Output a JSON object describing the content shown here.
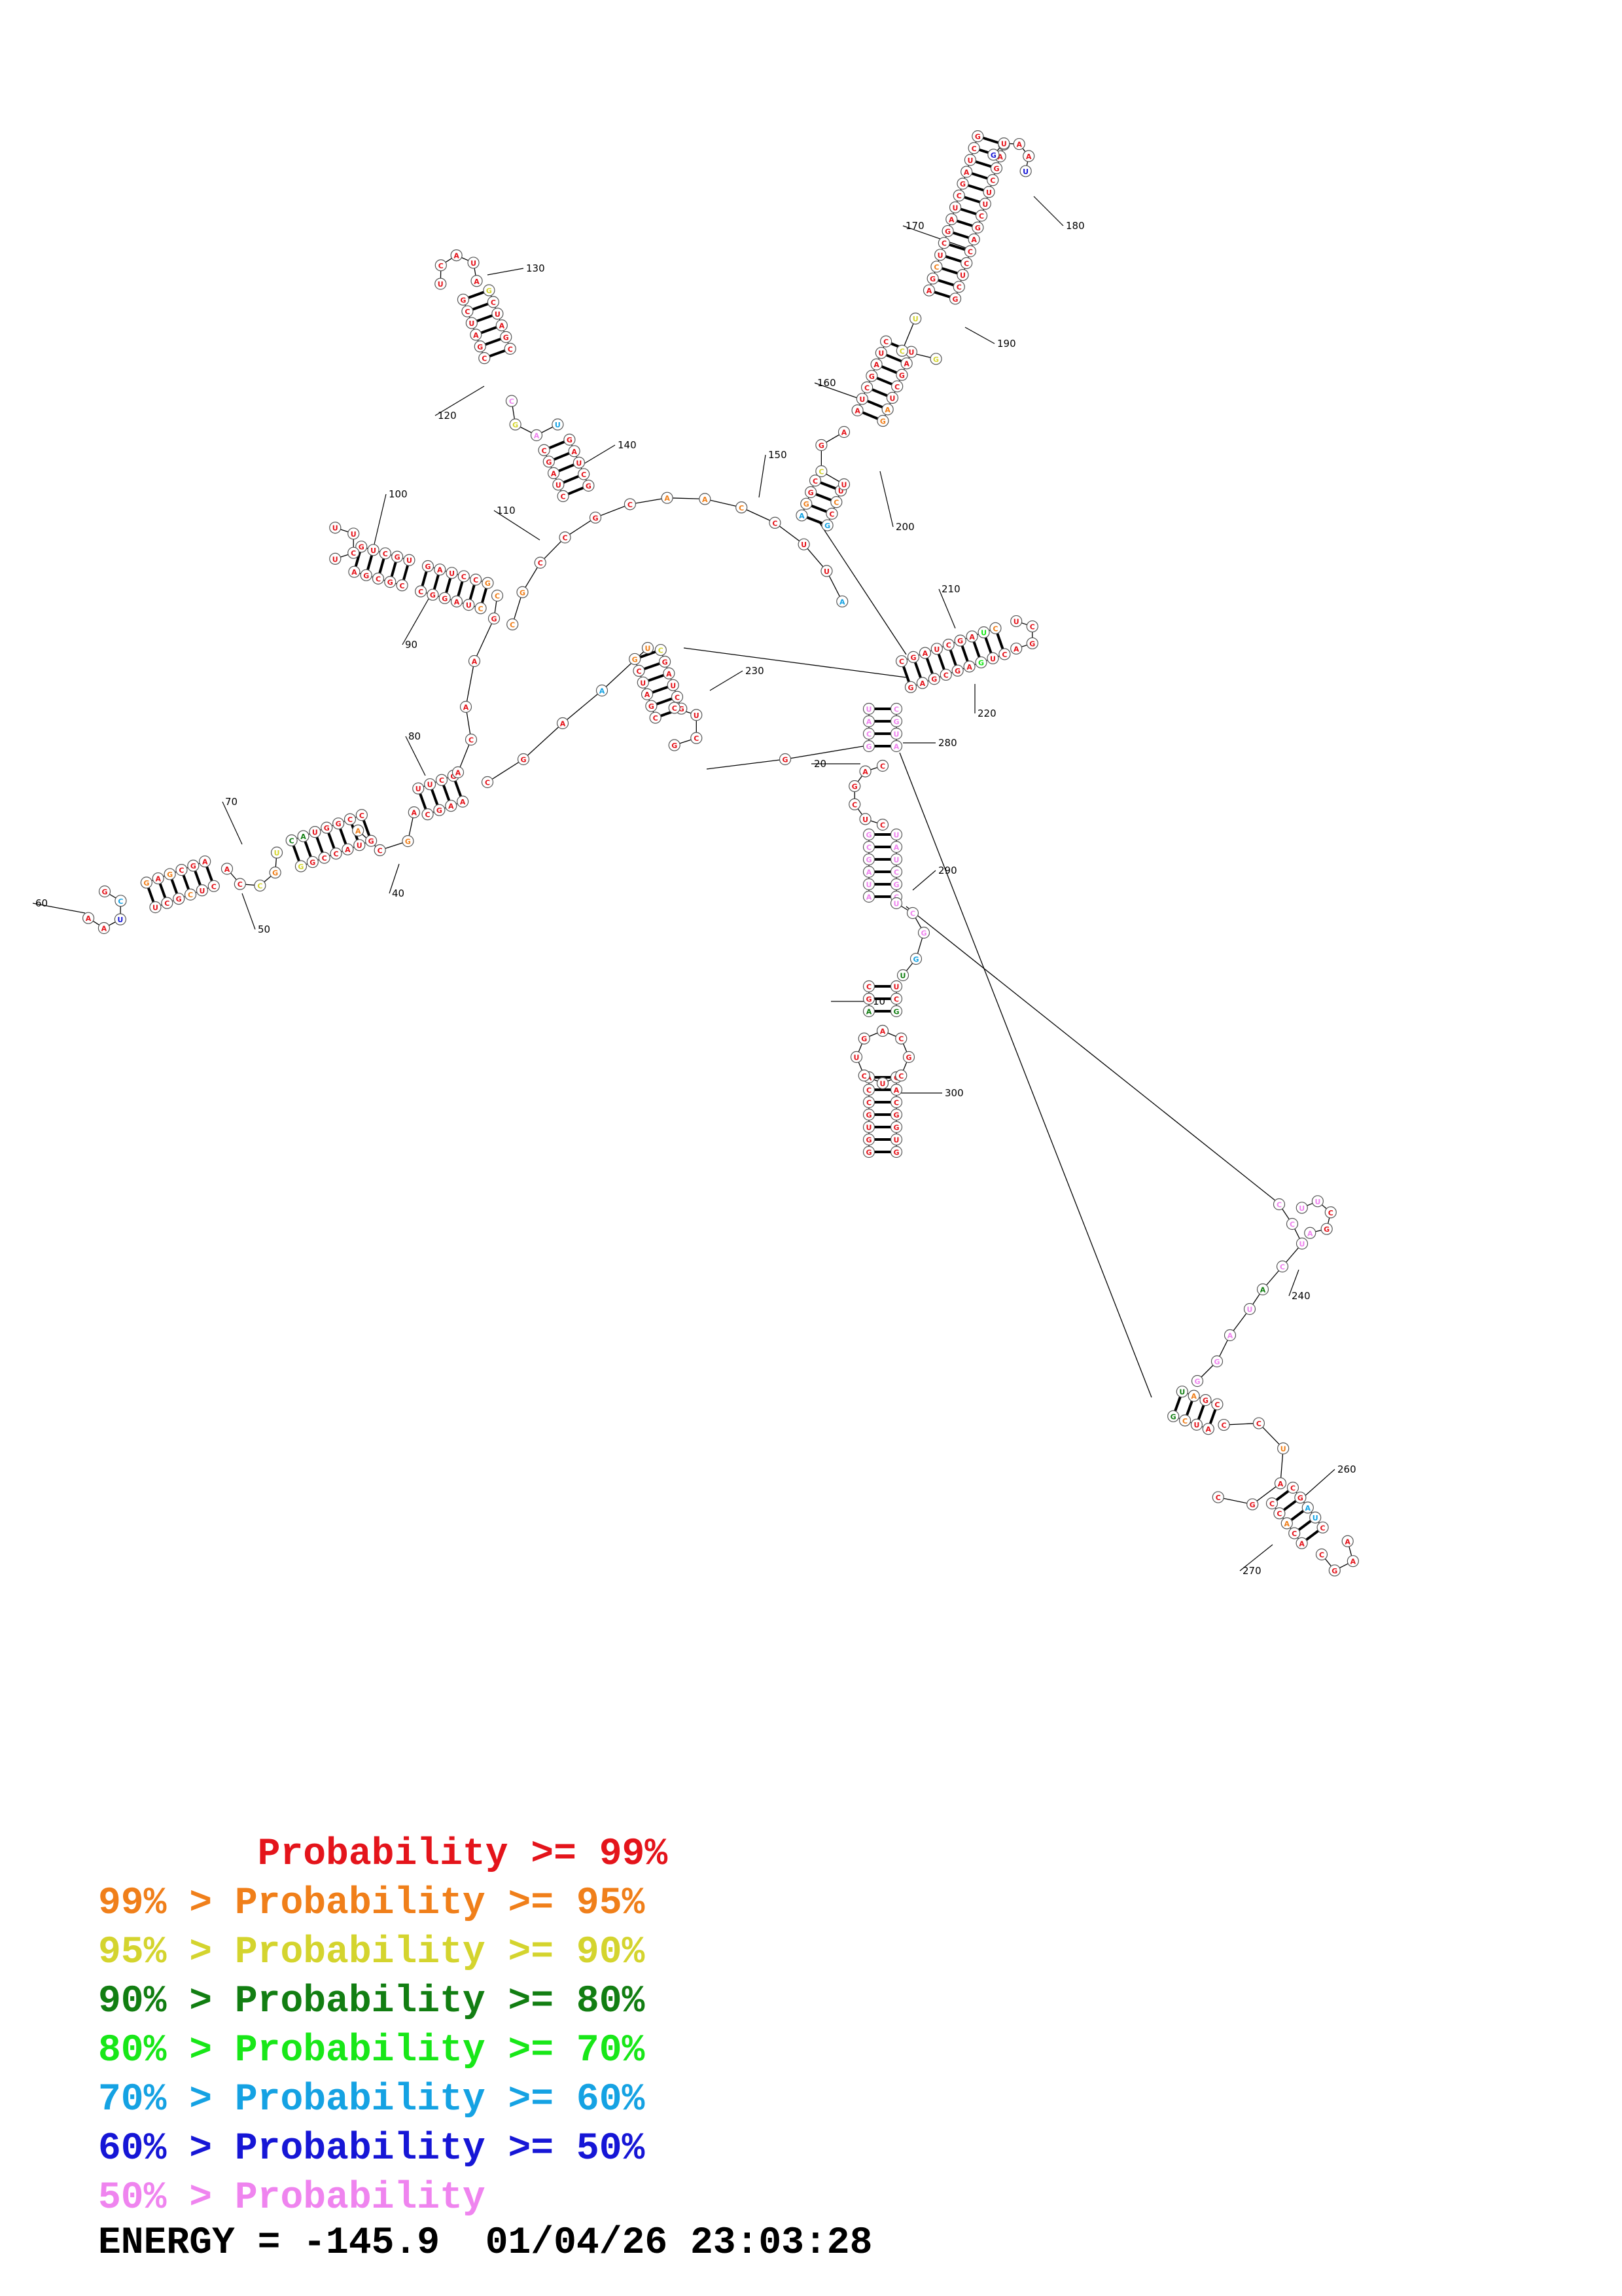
{
  "diagram": {
    "position_labels": [
      "10",
      "20",
      "40",
      "50",
      "60",
      "70",
      "80",
      "90",
      "100",
      "110",
      "120",
      "130",
      "140",
      "150",
      "160",
      "170",
      "180",
      "190",
      "200",
      "210",
      "220",
      "230",
      "240",
      "260",
      "270",
      "280",
      "290",
      "300"
    ],
    "bases": {
      "stem_5p_1": "GUGGCACCU",
      "stem_3p_1": "GGUGCCAC",
      "hairpin_300": "AGUCAGAGGU",
      "hairpin_60": "ACGUGGAGCGGUAAGAGUUCGAAAUGG",
      "hairpin_100": "UGCUGGGAAUCCCAGCG",
      "hairpin_130": "ACUGCCAUGGCAGUAGGCGC",
      "hairpin_180": "GCUCCAGCUUCGAGCUGGUGGAUCGGAUU",
      "hairpin_210": "GAGCGAGUCUCGCUAUCG",
      "hairpin_230": "CGAGCUUCGUGCC",
      "hairpin_260": "CCACAGGUUCGAUUCCUGUGG",
      "linker_110": "CGCCGCAACCUUAA",
      "linker_240": "CCUCAUAGGAUUCG",
      "linker_290": "GCUUAACCCGGGUUAAGC"
    },
    "colors": {
      "p99": "#e4141b",
      "p95": "#f07f1a",
      "p90": "#d4d42e",
      "p80": "#127e12",
      "p70": "#18e718",
      "p60": "#15a2e3",
      "p50": "#1616d6",
      "plt50": "#ef84ef"
    }
  },
  "legend": [
    {
      "text": "       Probability >= 99%",
      "color": "#e4141b"
    },
    {
      "text": "99% > Probability >= 95%",
      "color": "#f07f1a"
    },
    {
      "text": "95% > Probability >= 90%",
      "color": "#d4d42e"
    },
    {
      "text": "90% > Probability >= 80%",
      "color": "#127e12"
    },
    {
      "text": "80% > Probability >= 70%",
      "color": "#18e718"
    },
    {
      "text": "70% > Probability >= 60%",
      "color": "#15a2e3"
    },
    {
      "text": "60% > Probability >= 50%",
      "color": "#1616d6"
    },
    {
      "text": "50% > Probability",
      "color": "#ef84ef"
    }
  ],
  "energy": "ENERGY = -145.9  01/04/26 23:03:28"
}
